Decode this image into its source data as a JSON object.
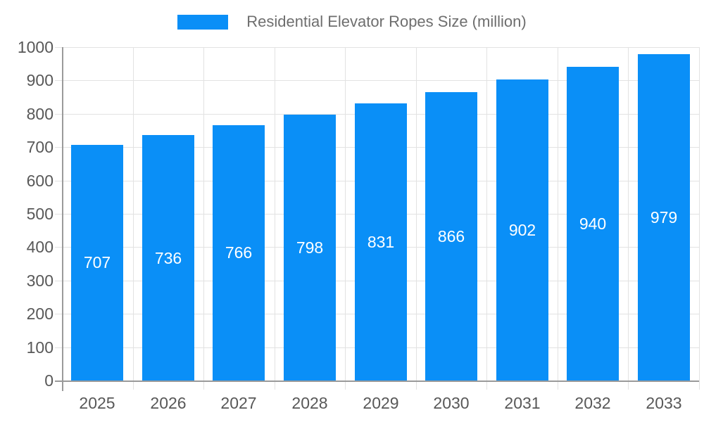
{
  "chart_data": {
    "type": "bar",
    "title": "Residential Elevator Ropes Size (million)",
    "categories": [
      "2025",
      "2026",
      "2027",
      "2028",
      "2029",
      "2030",
      "2031",
      "2032",
      "2033"
    ],
    "series": [
      {
        "name": "Residential Elevator Ropes Size (million)",
        "values": [
          707,
          736,
          766,
          798,
          831,
          866,
          902,
          940,
          979
        ]
      }
    ],
    "value_labels": [
      "707",
      "736",
      "766",
      "798",
      "831",
      "866",
      "902",
      "940",
      "979"
    ],
    "xlabel": "",
    "ylabel": "",
    "ylim": [
      0,
      1000
    ],
    "ytick_step": 100,
    "ytick_labels": [
      "0",
      "100",
      "200",
      "300",
      "400",
      "500",
      "600",
      "700",
      "800",
      "900",
      "1000"
    ],
    "grid": true,
    "legend_position": "top"
  },
  "legend": {
    "label": "Residential Elevator Ropes Size (million)"
  },
  "colors": {
    "bar": "#0a8ff7",
    "bar_value_text": "#ffffff",
    "gridline": "#e2e2e2",
    "axis_line": "#9a9a9a",
    "axis_text": "#585858",
    "legend_text": "#6e6e6e",
    "background": "#ffffff"
  }
}
